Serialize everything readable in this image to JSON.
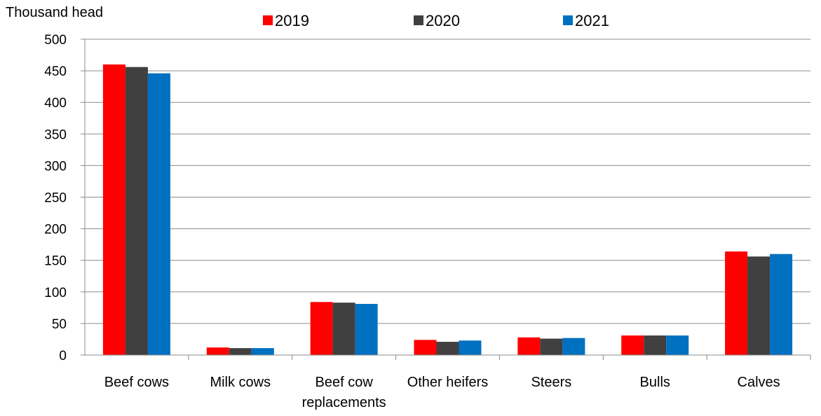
{
  "chart_data": {
    "type": "bar",
    "ylabel": "Thousand head",
    "categories": [
      [
        "Beef cows"
      ],
      [
        "Milk cows"
      ],
      [
        "Beef cow",
        "replacements"
      ],
      [
        "Other heifers"
      ],
      [
        "Steers"
      ],
      [
        "Bulls"
      ],
      [
        "Calves"
      ]
    ],
    "series": [
      {
        "name": "2019",
        "color": "#ff0000",
        "values": [
          460,
          12,
          84,
          24,
          28,
          31,
          164
        ]
      },
      {
        "name": "2020",
        "color": "#404040",
        "values": [
          456,
          11,
          83,
          21,
          26,
          31,
          156
        ]
      },
      {
        "name": "2021",
        "color": "#0070c0",
        "values": [
          446,
          11,
          81,
          23,
          27,
          31,
          160
        ]
      }
    ],
    "ylim": [
      0,
      500
    ],
    "yticks": [
      0,
      50,
      100,
      150,
      200,
      250,
      300,
      350,
      400,
      450,
      500
    ],
    "grid": true,
    "legend": "top"
  }
}
